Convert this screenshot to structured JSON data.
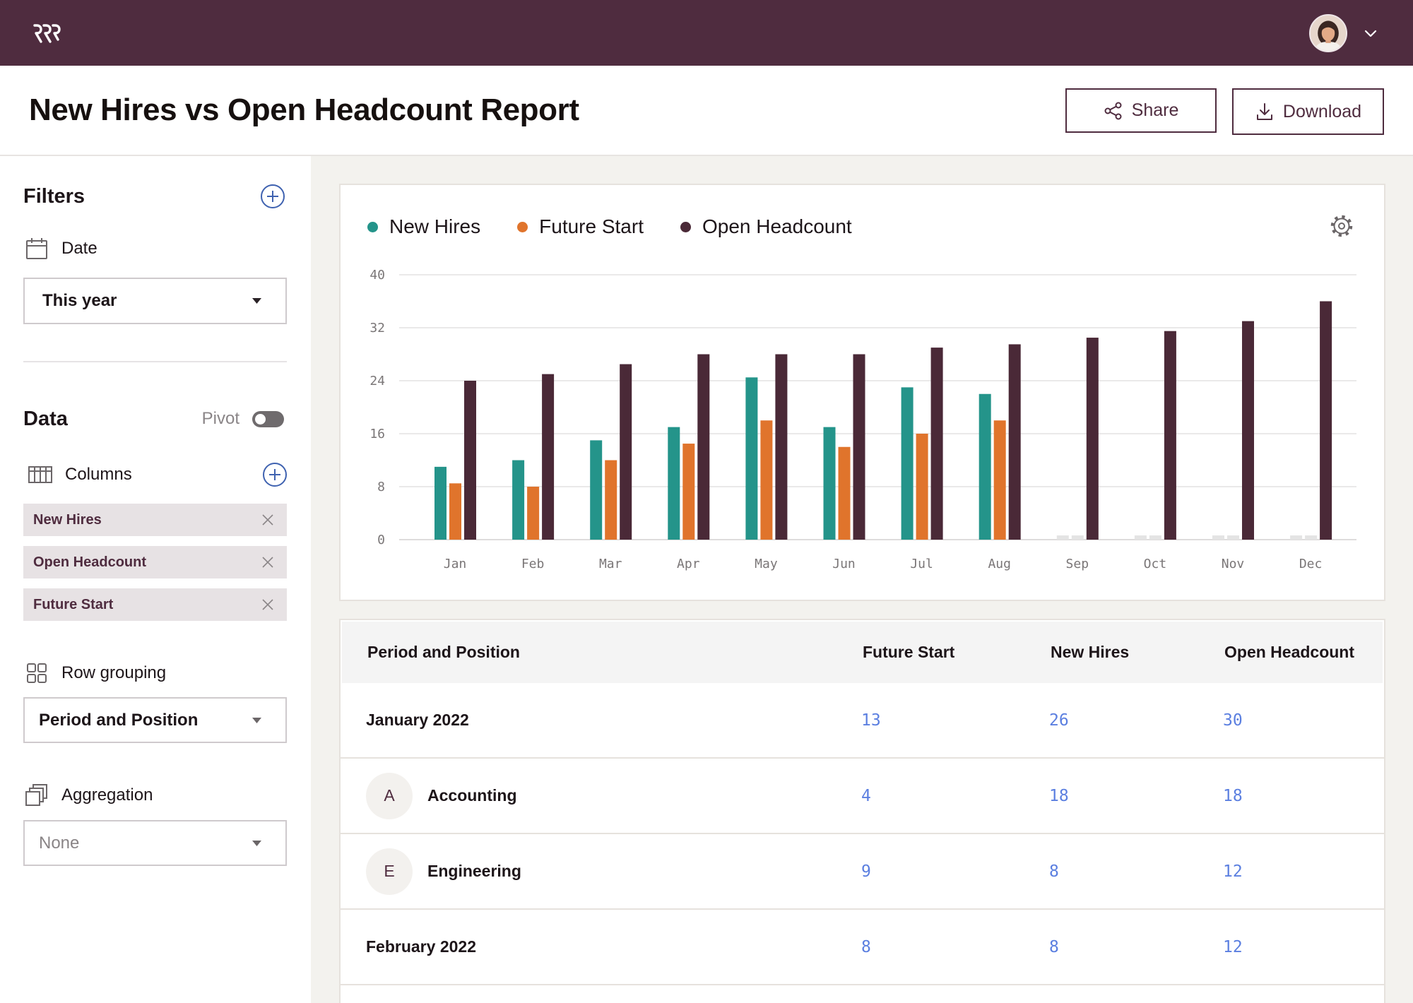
{
  "header": {
    "title": "New Hires vs Open Headcount Report",
    "share_label": "Share",
    "download_label": "Download"
  },
  "sidebar": {
    "filters": {
      "title": "Filters",
      "date_label": "Date",
      "date_value": "This year"
    },
    "data": {
      "title": "Data",
      "pivot_label": "Pivot",
      "pivot_on": false,
      "columns_label": "Columns",
      "columns": [
        "New Hires",
        "Open Headcount",
        "Future Start"
      ],
      "row_grouping_label": "Row grouping",
      "row_grouping_value": "Period and Position",
      "aggregation_label": "Aggregation",
      "aggregation_value": "None"
    }
  },
  "chart_data": {
    "type": "bar",
    "categories": [
      "Jan",
      "Feb",
      "Mar",
      "Apr",
      "May",
      "Jun",
      "Jul",
      "Aug",
      "Sep",
      "Oct",
      "Nov",
      "Dec"
    ],
    "series": [
      {
        "name": "New Hires",
        "color": "#24948a",
        "values": [
          11,
          12,
          15,
          17,
          24.5,
          17,
          23,
          22,
          null,
          null,
          null,
          null
        ]
      },
      {
        "name": "Future Start",
        "color": "#e0742c",
        "values": [
          8.5,
          8,
          12,
          14.5,
          18,
          14,
          16,
          18,
          null,
          null,
          null,
          null
        ]
      },
      {
        "name": "Open Headcount",
        "color": "#4a2937",
        "values": [
          24,
          25,
          26.5,
          28,
          28,
          28,
          29,
          29.5,
          30.5,
          31.5,
          33,
          36
        ]
      }
    ],
    "ylim": [
      0,
      40
    ],
    "yticks": [
      0,
      8,
      16,
      24,
      32,
      40
    ],
    "grid": true,
    "legend": "top-left"
  },
  "table": {
    "headers": [
      "Period and Position",
      "Future Start",
      "New Hires",
      "Open Headcount"
    ],
    "rows": [
      {
        "type": "period",
        "label": "January 2022",
        "future_start": "13",
        "new_hires": "26",
        "open_headcount": "30"
      },
      {
        "type": "position",
        "initial": "A",
        "label": "Accounting",
        "future_start": "4",
        "new_hires": "18",
        "open_headcount": "18"
      },
      {
        "type": "position",
        "initial": "E",
        "label": "Engineering",
        "future_start": "9",
        "new_hires": "8",
        "open_headcount": "12"
      },
      {
        "type": "period",
        "label": "February 2022",
        "future_start": "8",
        "new_hires": "8",
        "open_headcount": "12"
      }
    ]
  }
}
